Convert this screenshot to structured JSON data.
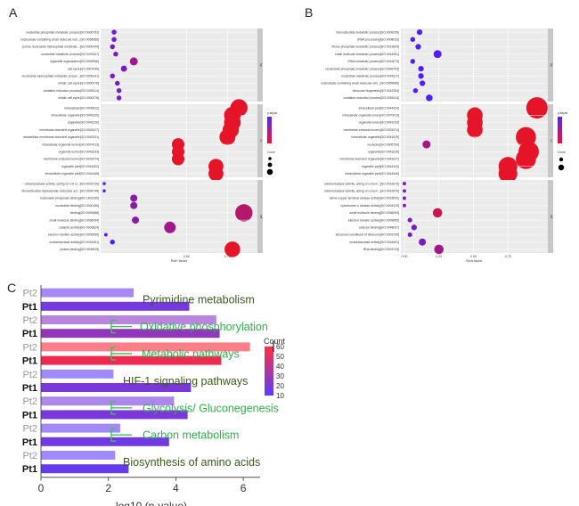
{
  "panels": {
    "A": {
      "letter": "A",
      "chart_data": {
        "type": "scatter",
        "xlabel": "Rich factor",
        "xticks": [
          "0.50",
          "0.75"
        ],
        "xlim": [
          0.0,
          0.9
        ],
        "facets": [
          {
            "strip": "bp",
            "terms": [
              {
                "label": "nucleotide phosphate metabolic process[GO:0006753]",
                "x": 0.06,
                "count": 10,
                "p": 0.03
              },
              {
                "label": "nucleobase-containing small molecule met...[GO:0055086]",
                "x": 0.06,
                "count": 10,
                "p": 0.03
              },
              {
                "label": "purine nucleoside triphosphate metabolic...[GO:0009144]",
                "x": 0.05,
                "count": 10,
                "p": 0.03
              },
              {
                "label": "nucleotide metabolic process[GO:0009117]",
                "x": 0.07,
                "count": 10,
                "p": 0.03
              },
              {
                "label": "organelle organization[GO:0006996]",
                "x": 0.18,
                "count": 40,
                "p": 0.02
              },
              {
                "label": "cell cycle[GO:0007049]",
                "x": 0.12,
                "count": 20,
                "p": 0.03
              },
              {
                "label": "nucleoside triphosphate metabolic proces...[GO:0009141]",
                "x": 0.05,
                "count": 10,
                "p": 0.03
              },
              {
                "label": "mitotic cell cycle[GO:0000278]",
                "x": 0.08,
                "count": 10,
                "p": 0.03
              },
              {
                "label": "oxidation-reduction process[GO:0055114]",
                "x": 0.09,
                "count": 10,
                "p": 0.03
              },
              {
                "label": "mitotic cell cycle[GO:0000278]",
                "x": 0.09,
                "count": 10,
                "p": 0.03
              }
            ]
          },
          {
            "strip": "cc",
            "terms": [
              {
                "label": "intracellular[GO:0005622]",
                "x": 0.82,
                "count": 250,
                "p": 0.003
              },
              {
                "label": "intracellular organelle[GO:0043229]",
                "x": 0.78,
                "count": 230,
                "p": 0.003
              },
              {
                "label": "organelle[GO:0043226]",
                "x": 0.78,
                "count": 230,
                "p": 0.003
              },
              {
                "label": "membrane-bounded organelle[GO:0043227]",
                "x": 0.77,
                "count": 220,
                "p": 0.003
              },
              {
                "label": "intracellular membrane-bounded organelle[GO:0043231]",
                "x": 0.75,
                "count": 210,
                "p": 0.003
              },
              {
                "label": "intracellular organelle lumen[GO:0070013]",
                "x": 0.45,
                "count": 120,
                "p": 0.003
              },
              {
                "label": "organelle lumen[GO:0043233]",
                "x": 0.45,
                "count": 120,
                "p": 0.003
              },
              {
                "label": "membrane-enclosed lumen[GO:0031974]",
                "x": 0.45,
                "count": 120,
                "p": 0.003
              },
              {
                "label": "organelle part[GO:0044422]",
                "x": 0.68,
                "count": 180,
                "p": 0.003
              },
              {
                "label": "intracellular organelle part[GO:0044446]",
                "x": 0.68,
                "count": 180,
                "p": 0.003
              }
            ]
          },
          {
            "strip": "mf",
            "terms": [
              {
                "label": "oxidoreductase activity, acting on CH or...[GO:0016726]",
                "x": 0.0,
                "count": 2,
                "p": 0.04
              },
              {
                "label": "ribonucleoside-diphosphate reductase act...[GO:0004748]",
                "x": 0.0,
                "count": 2,
                "p": 0.04
              },
              {
                "label": "nucleoside phosphate binding[GO:1901265]",
                "x": 0.18,
                "count": 30,
                "p": 0.025
              },
              {
                "label": "nucleotide binding[GO:0000166]",
                "x": 0.18,
                "count": 30,
                "p": 0.025
              },
              {
                "label": "binding[GO:0005488]",
                "x": 0.85,
                "count": 250,
                "p": 0.015
              },
              {
                "label": "small molecule binding[GO:0036094]",
                "x": 0.19,
                "count": 30,
                "p": 0.025
              },
              {
                "label": "catalytic activity[GO:0003824]",
                "x": 0.4,
                "count": 100,
                "p": 0.02
              },
              {
                "label": "electron transfer activity[GO:0009055]",
                "x": 0.01,
                "count": 3,
                "p": 0.04
              },
              {
                "label": "oxidoreductase activity[GO:0016491]",
                "x": 0.05,
                "count": 10,
                "p": 0.04
              },
              {
                "label": "protein binding[GO:0005515]",
                "x": 0.78,
                "count": 200,
                "p": 0.003
              }
            ]
          }
        ]
      }
    },
    "B": {
      "letter": "B",
      "chart_data": {
        "type": "scatter",
        "xlabel": "Rich factor",
        "xticks": [
          "0.00",
          "0.25",
          "0.50",
          "0.75"
        ],
        "xlim": [
          0.0,
          1.0
        ],
        "facets": [
          {
            "strip": "bp",
            "terms": [
              {
                "label": "ribonucleotide metabolic process[GO:0009259]",
                "x": 0.11,
                "count": 15,
                "p": 0.04
              },
              {
                "label": "tRNA processing[GO:0008033]",
                "x": 0.06,
                "count": 10,
                "p": 0.04
              },
              {
                "label": "ribose phosphate metabolic process[GO:0019693]",
                "x": 0.1,
                "count": 15,
                "p": 0.04
              },
              {
                "label": "small molecule metabolic process[GO:0044281]",
                "x": 0.24,
                "count": 40,
                "p": 0.04
              },
              {
                "label": "rRNA metabolic process[GO:0016072]",
                "x": 0.06,
                "count": 10,
                "p": 0.04
              },
              {
                "label": "nucleoside phosphate metabolic process[GO:0006753]",
                "x": 0.12,
                "count": 15,
                "p": 0.04
              },
              {
                "label": "nucleotide metabolic process[GO:0009117]",
                "x": 0.12,
                "count": 15,
                "p": 0.04
              },
              {
                "label": "nucleobase-containing small molecule met...[GO:0055086]",
                "x": 0.13,
                "count": 15,
                "p": 0.04
              },
              {
                "label": "ribosome biogenesis[GO:0042254]",
                "x": 0.08,
                "count": 10,
                "p": 0.04
              },
              {
                "label": "oxidation-reduction process[GO:0055114]",
                "x": 0.18,
                "count": 25,
                "p": 0.04
              }
            ]
          },
          {
            "strip": "cc",
            "terms": [
              {
                "label": "intracellular part[GO:0044424]",
                "x": 0.96,
                "count": 400,
                "p": 0.003
              },
              {
                "label": "intracellular organelle lumen[GO:0070013]",
                "x": 0.51,
                "count": 200,
                "p": 0.003
              },
              {
                "label": "organelle lumen[GO:0043233]",
                "x": 0.51,
                "count": 200,
                "p": 0.003
              },
              {
                "label": "membrane-enclosed lumen[GO:0031974]",
                "x": 0.51,
                "count": 200,
                "p": 0.003
              },
              {
                "label": "intracellular organelle[GO:0043229]",
                "x": 0.88,
                "count": 350,
                "p": 0.003
              },
              {
                "label": "nucleolus[GO:0005730]",
                "x": 0.16,
                "count": 40,
                "p": 0.02
              },
              {
                "label": "organelle[GO:0043226]",
                "x": 0.9,
                "count": 360,
                "p": 0.003
              },
              {
                "label": "membrane-bounded organelle[GO:0043227]",
                "x": 0.88,
                "count": 350,
                "p": 0.003
              },
              {
                "label": "organelle part[GO:0044422]",
                "x": 0.75,
                "count": 300,
                "p": 0.003
              },
              {
                "label": "intracellular organelle part[GO:0044446]",
                "x": 0.75,
                "count": 300,
                "p": 0.003
              }
            ]
          },
          {
            "strip": "mf",
            "terms": [
              {
                "label": "oxidoreductase activity, acting on a hem...[GO:0016675]",
                "x": 0.0,
                "count": 3,
                "p": 0.03
              },
              {
                "label": "oxidoreductase activity, acting on a hem...[GO:0016676]",
                "x": 0.0,
                "count": 3,
                "p": 0.03
              },
              {
                "label": "heme-copper terminal oxidase activity[GO:0015002]",
                "x": 0.0,
                "count": 3,
                "p": 0.03
              },
              {
                "label": "cytochrome-c oxidase activity[GO:0004129]",
                "x": 0.0,
                "count": 3,
                "p": 0.03
              },
              {
                "label": "small molecule binding[GO:0036094]",
                "x": 0.24,
                "count": 60,
                "p": 0.01
              },
              {
                "label": "electron transfer activity[GO:0009055]",
                "x": 0.04,
                "count": 8,
                "p": 0.03
              },
              {
                "label": "cofactor binding[GO:0048037]",
                "x": 0.07,
                "count": 15,
                "p": 0.03
              },
              {
                "label": "structural constituent of ribosome[GO:0003735]",
                "x": 0.04,
                "count": 8,
                "p": 0.03
              },
              {
                "label": "oxidoreductase activity[GO:0016491]",
                "x": 0.13,
                "count": 30,
                "p": 0.03
              },
              {
                "label": "RNA binding[GO:0003723]",
                "x": 0.25,
                "count": 60,
                "p": 0.02
              }
            ]
          }
        ]
      }
    },
    "C": {
      "letter": "C",
      "chart_data": {
        "type": "bar",
        "orientation": "horizontal",
        "xlabel": "-log10 (p-value)",
        "xlim": [
          0,
          6.5
        ],
        "xticks": [
          0,
          2,
          4,
          6
        ],
        "color_scale": {
          "title": "Count",
          "min": 10,
          "max": 60,
          "ticks": [
            10,
            20,
            30,
            40,
            50,
            60
          ],
          "low_color": "#5a3cff",
          "high_color": "#ff3040"
        },
        "bars": [
          {
            "row_label": "Pt2",
            "dim": true,
            "value": 2.75,
            "count": 15
          },
          {
            "row_label": "Pt1",
            "dim": false,
            "value": 4.4,
            "count": 18
          },
          {
            "row_label": "Pt2",
            "dim": true,
            "value": 5.2,
            "count": 25
          },
          {
            "row_label": "Pt1",
            "dim": false,
            "value": 5.3,
            "count": 27
          },
          {
            "row_label": "Pt2",
            "dim": true,
            "value": 6.2,
            "count": 60
          },
          {
            "row_label": "Pt1",
            "dim": false,
            "value": 5.35,
            "count": 55
          },
          {
            "row_label": "Pt2",
            "dim": true,
            "value": 2.15,
            "count": 12
          },
          {
            "row_label": "Pt1",
            "dim": false,
            "value": 4.45,
            "count": 20
          },
          {
            "row_label": "Pt2",
            "dim": true,
            "value": 3.95,
            "count": 18
          },
          {
            "row_label": "Pt1",
            "dim": false,
            "value": 4.35,
            "count": 20
          },
          {
            "row_label": "Pt2",
            "dim": true,
            "value": 2.35,
            "count": 13
          },
          {
            "row_label": "Pt1",
            "dim": false,
            "value": 3.8,
            "count": 17
          },
          {
            "row_label": "Pt2",
            "dim": true,
            "value": 2.2,
            "count": 12
          },
          {
            "row_label": "Pt1",
            "dim": false,
            "value": 2.6,
            "count": 14
          }
        ],
        "pathways": [
          {
            "label": "Pyrimidine metabolism",
            "color": "dark"
          },
          {
            "label": "Oxidative phosphorylation",
            "color": "green"
          },
          {
            "label": "Metabolic pathways",
            "color": "green"
          },
          {
            "label": "HIF-1 signaling pathways",
            "color": "dark"
          },
          {
            "label": "Glycolysis/ Gluconegenesis",
            "color": "green"
          },
          {
            "label": "Carbon metabolism",
            "color": "green"
          },
          {
            "label": "Biosynthesis of amino acids",
            "color": "dark"
          }
        ]
      }
    }
  }
}
